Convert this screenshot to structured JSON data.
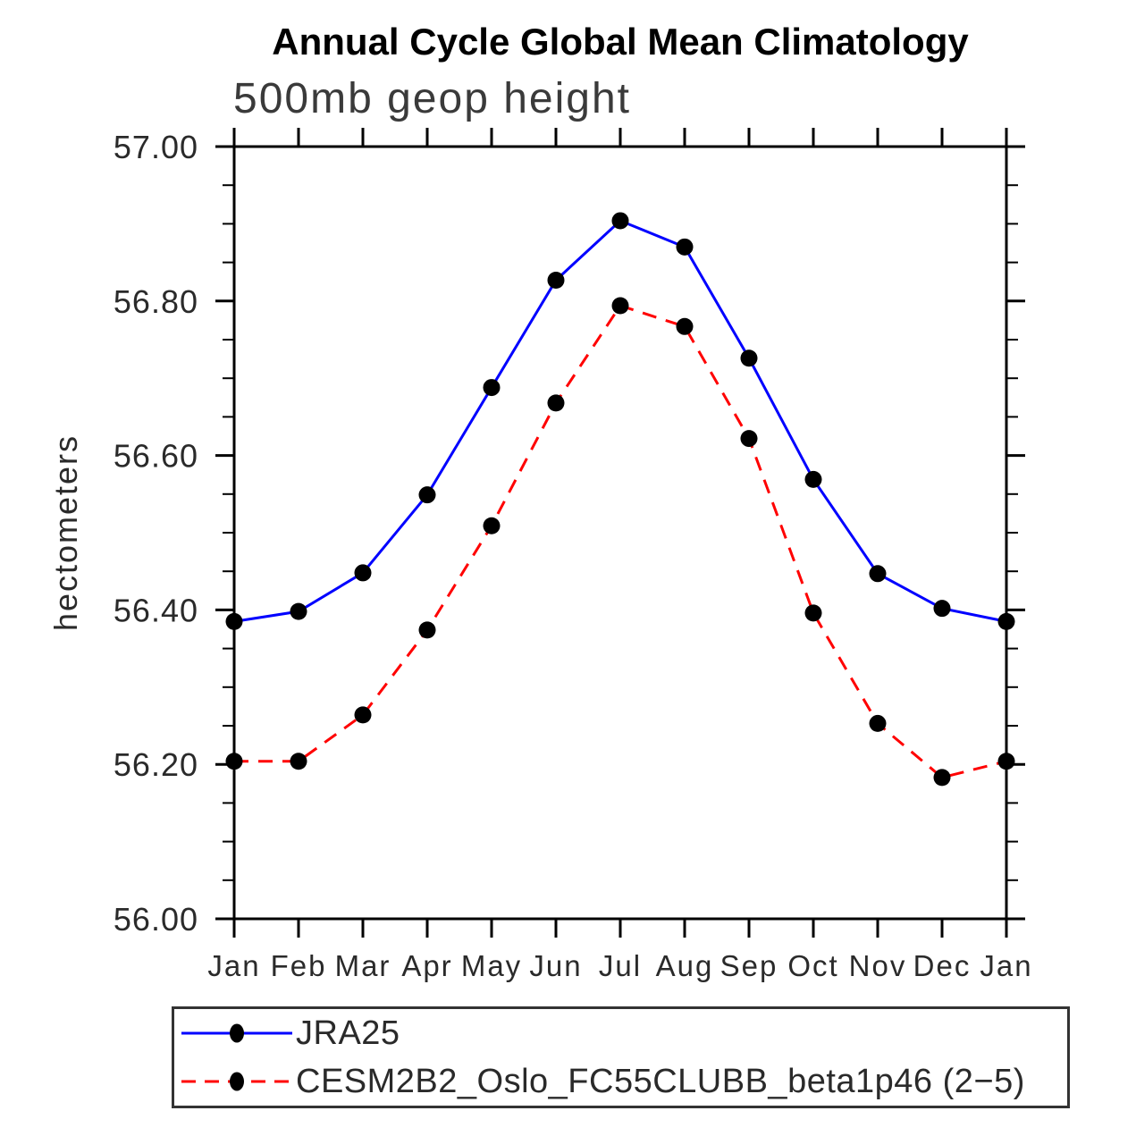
{
  "chart_data": {
    "type": "line",
    "title": "Annual Cycle Global Mean Climatology",
    "subtitle": "500mb geop height",
    "ylabel": "hectometers",
    "xlabel": "",
    "ylim": [
      56.0,
      57.0
    ],
    "y_major_tick_step": 0.2,
    "y_minor_tick_step": 0.05,
    "y_tick_labels": [
      "56.00",
      "56.20",
      "56.40",
      "56.60",
      "56.80",
      "57.00"
    ],
    "categories": [
      "Jan",
      "Feb",
      "Mar",
      "Apr",
      "May",
      "Jun",
      "Jul",
      "Aug",
      "Sep",
      "Oct",
      "Nov",
      "Dec",
      "Jan"
    ],
    "grid": false,
    "legend_position": "bottom",
    "frame_color": "#000000",
    "marker_color": "#000000",
    "series": [
      {
        "name": "JRA25",
        "color": "#0000ff",
        "line_style": "solid",
        "marker": "filled-circle",
        "values": [
          56.385,
          56.398,
          56.448,
          56.549,
          56.688,
          56.827,
          56.904,
          56.87,
          56.726,
          56.569,
          56.447,
          56.402,
          56.385
        ]
      },
      {
        "name": "CESM2B2_Oslo_FC55CLUBB_beta1p46 (2−5)",
        "color": "#ff0000",
        "line_style": "dashed",
        "marker": "filled-circle",
        "values": [
          56.204,
          56.204,
          56.264,
          56.374,
          56.509,
          56.668,
          56.794,
          56.767,
          56.622,
          56.396,
          56.253,
          56.183,
          56.204
        ]
      }
    ]
  }
}
